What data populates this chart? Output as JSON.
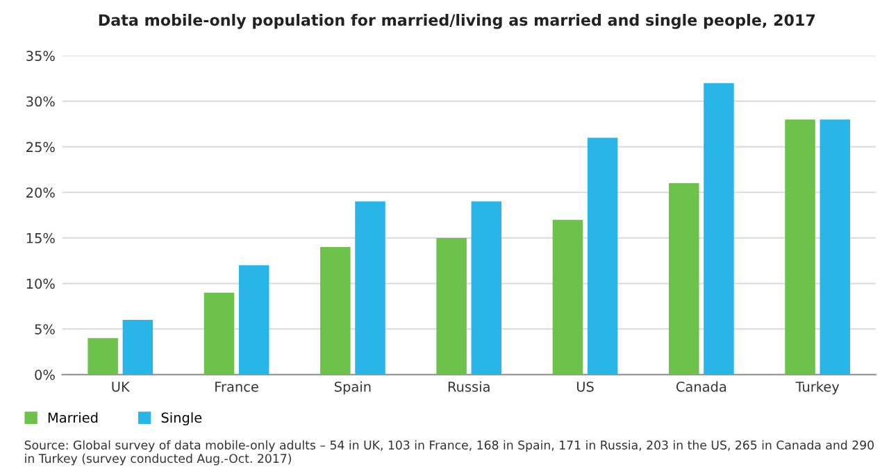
{
  "chart_data": {
    "type": "bar",
    "title": "Data mobile-only population for married/living as married and single people, 2017",
    "categories": [
      "UK",
      "France",
      "Spain",
      "Russia",
      "US",
      "Canada",
      "Turkey"
    ],
    "series": [
      {
        "name": "Married",
        "color": "#6cc24a",
        "values": [
          4,
          9,
          14,
          15,
          17,
          21,
          28
        ]
      },
      {
        "name": "Single",
        "color": "#29b5e8",
        "values": [
          6,
          12,
          19,
          19,
          26,
          32,
          28
        ]
      }
    ],
    "ylim": [
      0,
      35
    ],
    "yticks": [
      {
        "value": 0,
        "label": "0%"
      },
      {
        "value": 5,
        "label": "5%"
      },
      {
        "value": 10,
        "label": "10%"
      },
      {
        "value": 15,
        "label": "15%"
      },
      {
        "value": 20,
        "label": "20%"
      },
      {
        "value": 25,
        "label": "25%"
      },
      {
        "value": 30,
        "label": "30%"
      },
      {
        "value": 35,
        "label": "35%"
      }
    ],
    "grid": "y",
    "legend": "bottom left",
    "annotations": [
      "Source: Global survey of data mobile-only adults – 54 in UK, 103 in France, 168 in Spain, 171 in Russia, 203 in the US, 265 in Canada and 290 in Turkey (survey conducted Aug.-Oct. 2017)"
    ]
  }
}
